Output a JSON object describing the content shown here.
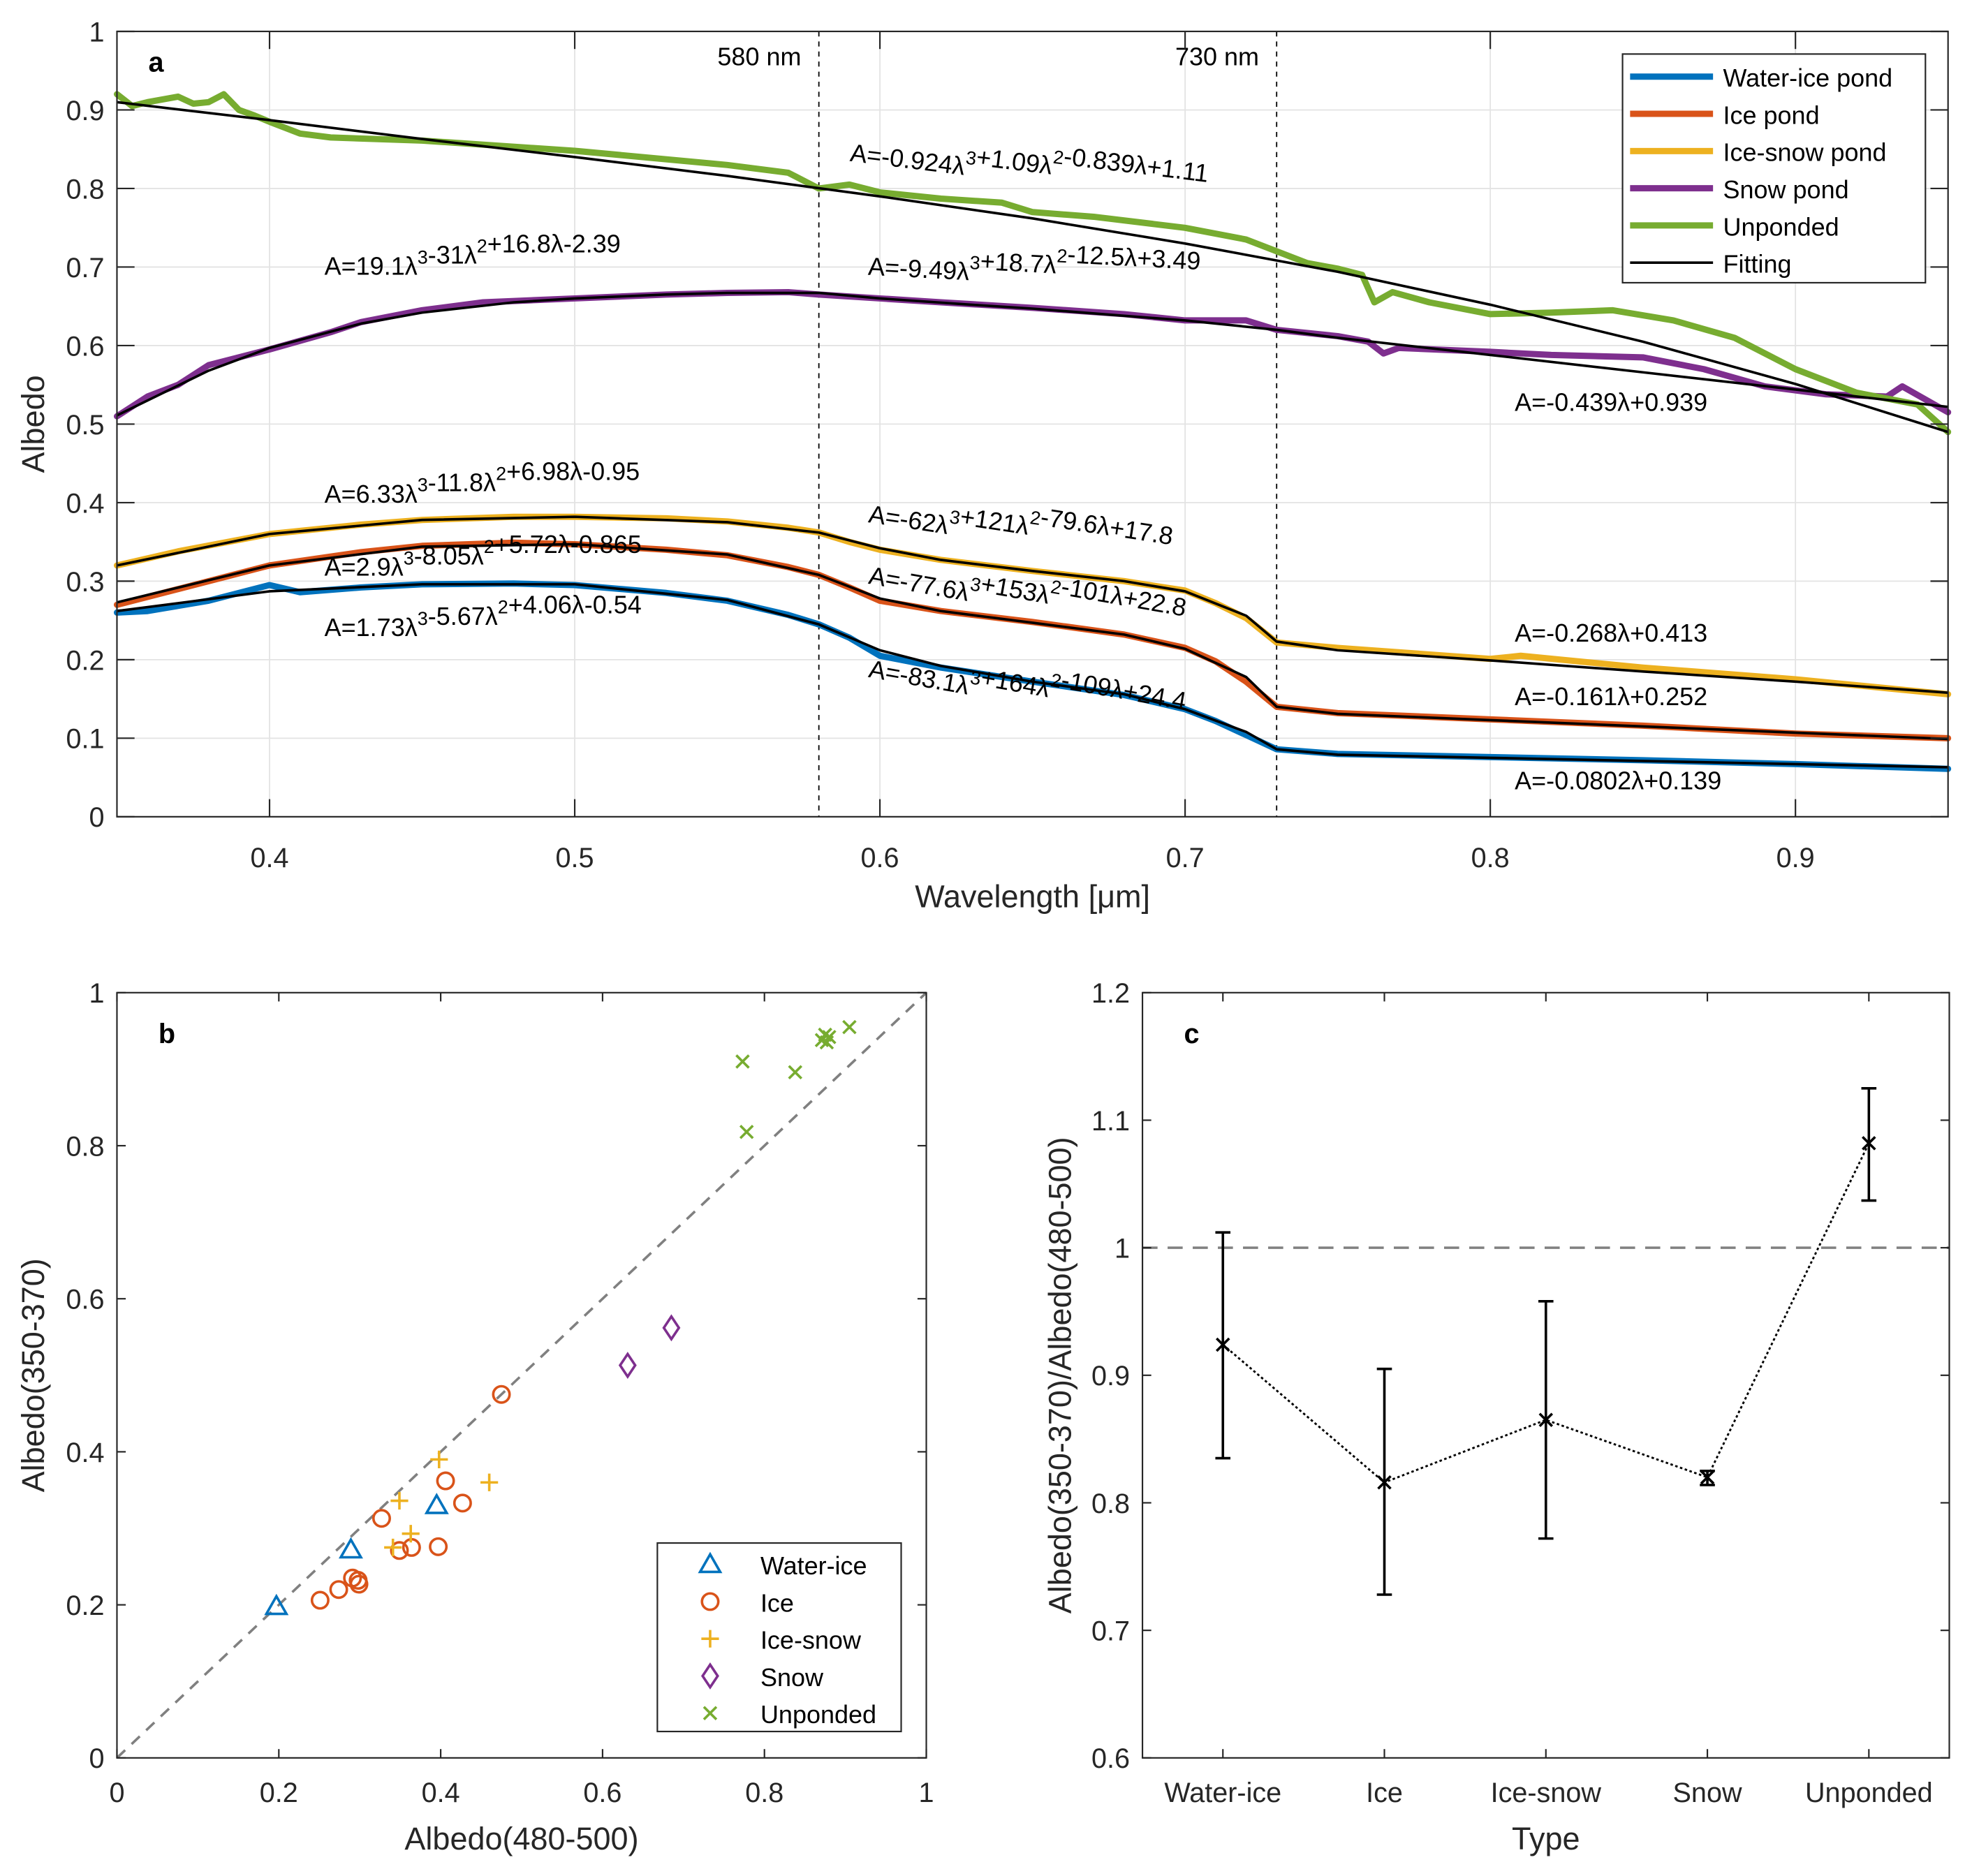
{
  "figure": {
    "panels": [
      "a",
      "b",
      "c"
    ]
  },
  "chart_data": [
    {
      "id": "a",
      "type": "line",
      "panel_label": "a",
      "xlabel": "Wavelength [μm]",
      "ylabel": "Albedo",
      "xlim": [
        0.35,
        0.95
      ],
      "ylim": [
        0,
        1
      ],
      "xticks": [
        0.4,
        0.5,
        0.6,
        0.7,
        0.8,
        0.9
      ],
      "xtick_labels": [
        "0.4",
        "0.5",
        "0.6",
        "0.7",
        "0.8",
        "0.9"
      ],
      "yticks": [
        0,
        0.1,
        0.2,
        0.3,
        0.4,
        0.5,
        0.6,
        0.7,
        0.8,
        0.9,
        1
      ],
      "ytick_labels": [
        "0",
        "0.1",
        "0.2",
        "0.3",
        "0.4",
        "0.5",
        "0.6",
        "0.7",
        "0.8",
        "0.9",
        "1"
      ],
      "grid": true,
      "legend_position": "top-right",
      "vlines": [
        {
          "x": 0.58,
          "label": "580 nm"
        },
        {
          "x": 0.73,
          "label": "730 nm"
        }
      ],
      "series": [
        {
          "name": "Water-ice pond",
          "color": "#0072BD",
          "x": [
            0.35,
            0.36,
            0.38,
            0.4,
            0.41,
            0.43,
            0.45,
            0.48,
            0.5,
            0.53,
            0.55,
            0.57,
            0.58,
            0.59,
            0.6,
            0.62,
            0.65,
            0.68,
            0.7,
            0.71,
            0.72,
            0.73,
            0.75,
            0.8,
            0.85,
            0.9,
            0.95
          ],
          "y": [
            0.26,
            0.262,
            0.275,
            0.295,
            0.286,
            0.292,
            0.296,
            0.297,
            0.295,
            0.285,
            0.275,
            0.257,
            0.245,
            0.228,
            0.205,
            0.19,
            0.172,
            0.155,
            0.137,
            0.122,
            0.104,
            0.086,
            0.08,
            0.076,
            0.072,
            0.067,
            0.061
          ]
        },
        {
          "name": "Ice pond",
          "color": "#D95319",
          "x": [
            0.35,
            0.37,
            0.4,
            0.43,
            0.45,
            0.48,
            0.5,
            0.53,
            0.55,
            0.57,
            0.58,
            0.59,
            0.6,
            0.62,
            0.65,
            0.68,
            0.7,
            0.71,
            0.72,
            0.73,
            0.75,
            0.8,
            0.85,
            0.9,
            0.95
          ],
          "y": [
            0.27,
            0.29,
            0.32,
            0.337,
            0.345,
            0.349,
            0.347,
            0.34,
            0.333,
            0.318,
            0.308,
            0.292,
            0.275,
            0.262,
            0.248,
            0.232,
            0.215,
            0.198,
            0.172,
            0.14,
            0.132,
            0.124,
            0.116,
            0.106,
            0.1
          ]
        },
        {
          "name": "Ice-snow pond",
          "color": "#EDB120",
          "x": [
            0.35,
            0.37,
            0.4,
            0.43,
            0.45,
            0.48,
            0.5,
            0.53,
            0.55,
            0.57,
            0.58,
            0.59,
            0.6,
            0.62,
            0.65,
            0.68,
            0.7,
            0.71,
            0.72,
            0.73,
            0.75,
            0.8,
            0.81,
            0.85,
            0.9,
            0.95
          ],
          "y": [
            0.32,
            0.338,
            0.36,
            0.372,
            0.378,
            0.382,
            0.382,
            0.38,
            0.376,
            0.368,
            0.362,
            0.35,
            0.34,
            0.327,
            0.313,
            0.3,
            0.288,
            0.272,
            0.253,
            0.222,
            0.215,
            0.201,
            0.205,
            0.19,
            0.175,
            0.156
          ]
        },
        {
          "name": "Snow pond",
          "color": "#7E2F8E",
          "x": [
            0.35,
            0.36,
            0.37,
            0.38,
            0.4,
            0.42,
            0.43,
            0.45,
            0.47,
            0.5,
            0.53,
            0.55,
            0.57,
            0.58,
            0.6,
            0.62,
            0.65,
            0.68,
            0.7,
            0.72,
            0.73,
            0.75,
            0.76,
            0.765,
            0.77,
            0.8,
            0.82,
            0.85,
            0.87,
            0.89,
            0.91,
            0.93,
            0.935,
            0.95
          ],
          "y": [
            0.51,
            0.535,
            0.55,
            0.575,
            0.595,
            0.617,
            0.63,
            0.645,
            0.655,
            0.66,
            0.665,
            0.667,
            0.668,
            0.665,
            0.66,
            0.655,
            0.648,
            0.64,
            0.632,
            0.632,
            0.62,
            0.612,
            0.605,
            0.59,
            0.597,
            0.592,
            0.588,
            0.585,
            0.57,
            0.548,
            0.538,
            0.535,
            0.548,
            0.515
          ]
        },
        {
          "name": "Unponded",
          "color": "#77AC30",
          "x": [
            0.35,
            0.355,
            0.36,
            0.37,
            0.375,
            0.38,
            0.385,
            0.39,
            0.395,
            0.4,
            0.41,
            0.42,
            0.45,
            0.5,
            0.55,
            0.57,
            0.58,
            0.59,
            0.6,
            0.62,
            0.64,
            0.65,
            0.67,
            0.7,
            0.72,
            0.74,
            0.75,
            0.758,
            0.762,
            0.768,
            0.78,
            0.8,
            0.82,
            0.84,
            0.86,
            0.88,
            0.9,
            0.92,
            0.94,
            0.95
          ],
          "y": [
            0.92,
            0.905,
            0.91,
            0.917,
            0.908,
            0.91,
            0.92,
            0.9,
            0.893,
            0.885,
            0.87,
            0.865,
            0.861,
            0.848,
            0.83,
            0.82,
            0.8,
            0.805,
            0.795,
            0.787,
            0.782,
            0.77,
            0.764,
            0.75,
            0.735,
            0.705,
            0.698,
            0.69,
            0.655,
            0.668,
            0.655,
            0.64,
            0.642,
            0.645,
            0.632,
            0.61,
            0.57,
            0.54,
            0.525,
            0.49
          ]
        }
      ],
      "fits": [
        {
          "name": "Water-ice pond fit",
          "x": [
            0.35,
            0.4,
            0.45,
            0.5,
            0.55,
            0.58,
            0.6,
            0.62,
            0.65,
            0.68,
            0.7,
            0.72,
            0.73,
            0.75,
            0.8,
            0.85,
            0.9,
            0.95
          ],
          "y": [
            0.262,
            0.287,
            0.296,
            0.296,
            0.276,
            0.245,
            0.212,
            0.192,
            0.172,
            0.156,
            0.137,
            0.108,
            0.086,
            0.079,
            0.075,
            0.071,
            0.067,
            0.063
          ]
        },
        {
          "name": "Ice pond fit",
          "x": [
            0.35,
            0.4,
            0.45,
            0.5,
            0.55,
            0.58,
            0.6,
            0.62,
            0.65,
            0.68,
            0.7,
            0.72,
            0.73,
            0.75,
            0.8,
            0.85,
            0.9,
            0.95
          ],
          "y": [
            0.273,
            0.32,
            0.344,
            0.347,
            0.334,
            0.308,
            0.278,
            0.262,
            0.247,
            0.232,
            0.214,
            0.178,
            0.14,
            0.131,
            0.123,
            0.115,
            0.107,
            0.099
          ]
        },
        {
          "name": "Ice-snow pond fit",
          "x": [
            0.35,
            0.4,
            0.45,
            0.5,
            0.55,
            0.58,
            0.6,
            0.62,
            0.65,
            0.68,
            0.7,
            0.72,
            0.73,
            0.75,
            0.8,
            0.85,
            0.9,
            0.95
          ],
          "y": [
            0.32,
            0.36,
            0.378,
            0.382,
            0.375,
            0.362,
            0.342,
            0.327,
            0.313,
            0.3,
            0.287,
            0.256,
            0.223,
            0.212,
            0.199,
            0.185,
            0.172,
            0.158
          ]
        },
        {
          "name": "Snow pond fit",
          "x": [
            0.35,
            0.38,
            0.4,
            0.43,
            0.45,
            0.48,
            0.5,
            0.53,
            0.55,
            0.58,
            0.6,
            0.63,
            0.65,
            0.68,
            0.7,
            0.73,
            0.75,
            0.8,
            0.85,
            0.9,
            0.95
          ],
          "y": [
            0.511,
            0.568,
            0.597,
            0.628,
            0.642,
            0.655,
            0.66,
            0.665,
            0.667,
            0.667,
            0.66,
            0.652,
            0.647,
            0.638,
            0.632,
            0.62,
            0.61,
            0.588,
            0.566,
            0.544,
            0.522
          ]
        },
        {
          "name": "Unponded fit",
          "x": [
            0.35,
            0.4,
            0.45,
            0.5,
            0.55,
            0.6,
            0.65,
            0.7,
            0.75,
            0.8,
            0.85,
            0.9,
            0.95
          ],
          "y": [
            0.91,
            0.887,
            0.863,
            0.84,
            0.816,
            0.79,
            0.762,
            0.73,
            0.694,
            0.652,
            0.605,
            0.551,
            0.49
          ]
        }
      ],
      "annotations": [
        {
          "text": "A=-0.924λ³+1.09λ²-0.839λ+1.11",
          "x": 0.59,
          "y": 0.835,
          "rotate": 7
        },
        {
          "text": "A=19.1λ³-31λ²+16.8λ-2.39",
          "x": 0.418,
          "y": 0.69,
          "rotate": 0
        },
        {
          "text": "A=-9.49λ³+18.7λ²-12.5λ+3.49",
          "x": 0.596,
          "y": 0.69,
          "rotate": 3
        },
        {
          "text": "A=-0.439λ+0.939",
          "x": 0.808,
          "y": 0.517,
          "rotate": 0
        },
        {
          "text": "A=6.33λ³-11.8λ²+6.98λ-0.95",
          "x": 0.418,
          "y": 0.4,
          "rotate": 0
        },
        {
          "text": "A=2.9λ³-8.05λ²+5.72λ-0.865",
          "x": 0.418,
          "y": 0.307,
          "rotate": 0
        },
        {
          "text": "A=1.73λ³-5.67λ²+4.06λ-0.54",
          "x": 0.418,
          "y": 0.23,
          "rotate": 0
        },
        {
          "text": "A=-62λ³+121λ²-79.6λ+17.8",
          "x": 0.596,
          "y": 0.375,
          "rotate": 8.5
        },
        {
          "text": "A=-77.6λ³+153λ²-101λ+22.8",
          "x": 0.596,
          "y": 0.297,
          "rotate": 10
        },
        {
          "text": "A=-83.1λ³+164λ²-109λ+24.4",
          "x": 0.596,
          "y": 0.178,
          "rotate": 10
        },
        {
          "text": "A=-0.268λ+0.413",
          "x": 0.808,
          "y": 0.223,
          "rotate": 0
        },
        {
          "text": "A=-0.161λ+0.252",
          "x": 0.808,
          "y": 0.142,
          "rotate": 0
        },
        {
          "text": "A=-0.0802λ+0.139",
          "x": 0.808,
          "y": 0.035,
          "rotate": 0
        }
      ],
      "legend": [
        {
          "label": "Water-ice pond",
          "color": "#0072BD",
          "style": "thick"
        },
        {
          "label": "Ice pond",
          "color": "#D95319",
          "style": "thick"
        },
        {
          "label": "Ice-snow pond",
          "color": "#EDB120",
          "style": "thick"
        },
        {
          "label": "Snow pond",
          "color": "#7E2F8E",
          "style": "thick"
        },
        {
          "label": "Unponded",
          "color": "#77AC30",
          "style": "thick"
        },
        {
          "label": "Fitting",
          "color": "#000000",
          "style": "thin"
        }
      ]
    },
    {
      "id": "b",
      "type": "scatter",
      "panel_label": "b",
      "xlabel": "Albedo(480-500)",
      "ylabel": "Albedo(350-370)",
      "xlim": [
        0,
        1
      ],
      "ylim": [
        0,
        1
      ],
      "xticks": [
        0,
        0.2,
        0.4,
        0.6,
        0.8,
        1
      ],
      "xtick_labels": [
        "0",
        "0.2",
        "0.4",
        "0.6",
        "0.8",
        "1"
      ],
      "yticks": [
        0,
        0.2,
        0.4,
        0.6,
        0.8,
        1
      ],
      "ytick_labels": [
        "0",
        "0.2",
        "0.4",
        "0.6",
        "0.8",
        "1"
      ],
      "grid": false,
      "reference_line": {
        "type": "1:1",
        "style": "dashed",
        "color": "#808080"
      },
      "legend_position": "bottom-right",
      "series": [
        {
          "name": "Water-ice",
          "marker": "triangle",
          "color": "#0072BD",
          "points": [
            [
              0.197,
              0.198
            ],
            [
              0.289,
              0.272
            ],
            [
              0.395,
              0.33
            ]
          ]
        },
        {
          "name": "Ice",
          "marker": "circle",
          "color": "#D95319",
          "points": [
            [
              0.475,
              0.475
            ],
            [
              0.406,
              0.362
            ],
            [
              0.427,
              0.333
            ],
            [
              0.327,
              0.313
            ],
            [
              0.349,
              0.271
            ],
            [
              0.364,
              0.275
            ],
            [
              0.397,
              0.276
            ],
            [
              0.291,
              0.235
            ],
            [
              0.298,
              0.232
            ],
            [
              0.299,
              0.227
            ],
            [
              0.274,
              0.22
            ],
            [
              0.251,
              0.206
            ]
          ]
        },
        {
          "name": "Ice-snow",
          "marker": "plus",
          "color": "#EDB120",
          "points": [
            [
              0.398,
              0.39
            ],
            [
              0.46,
              0.36
            ],
            [
              0.349,
              0.336
            ],
            [
              0.363,
              0.293
            ],
            [
              0.341,
              0.275
            ]
          ]
        },
        {
          "name": "Snow",
          "marker": "diamond",
          "color": "#7E2F8E",
          "points": [
            [
              0.631,
              0.513
            ],
            [
              0.685,
              0.562
            ]
          ]
        },
        {
          "name": "Unponded",
          "marker": "x",
          "color": "#77AC30",
          "points": [
            [
              0.773,
              0.91
            ],
            [
              0.778,
              0.818
            ],
            [
              0.838,
              0.896
            ],
            [
              0.871,
              0.938
            ],
            [
              0.875,
              0.945
            ],
            [
              0.877,
              0.935
            ],
            [
              0.88,
              0.942
            ],
            [
              0.905,
              0.955
            ]
          ]
        }
      ]
    },
    {
      "id": "c",
      "type": "line",
      "subtype": "errorbar",
      "panel_label": "c",
      "xlabel": "Type",
      "ylabel": "Albedo(350-370)/Albedo(480-500)",
      "ylim": [
        0.6,
        1.2
      ],
      "yticks": [
        0.6,
        0.7,
        0.8,
        0.9,
        1,
        1.1,
        1.2
      ],
      "ytick_labels": [
        "0.6",
        "0.7",
        "0.8",
        "0.9",
        "1",
        "1.1",
        "1.2"
      ],
      "categories": [
        "Water-ice",
        "Ice",
        "Ice-snow",
        "Snow",
        "Unponded"
      ],
      "grid": false,
      "reference_line": {
        "y": 1,
        "style": "dashed",
        "color": "#808080"
      },
      "series": [
        {
          "name": "ratio",
          "marker": "x",
          "line_style": "dotted",
          "color": "#000000",
          "values": [
            0.924,
            0.816,
            0.865,
            0.82,
            1.082
          ],
          "upper": [
            1.012,
            0.905,
            0.958,
            0.825,
            1.125
          ],
          "lower": [
            0.835,
            0.728,
            0.772,
            0.814,
            1.037
          ]
        }
      ]
    }
  ]
}
